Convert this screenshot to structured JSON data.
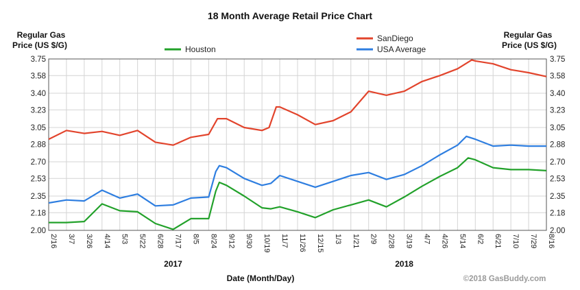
{
  "chart_data": {
    "type": "line",
    "title": "18 Month Average Retail Price Chart",
    "ylabel_left": [
      "Regular Gas",
      "Price (US $/G)"
    ],
    "ylabel_right": [
      "Regular Gas",
      "Price (US $/G)"
    ],
    "xlabel": "Date (Month/Day)",
    "credit": "©2018 GasBuddy.com",
    "ylim": [
      2.0,
      3.75
    ],
    "y_ticks": [
      "3.75",
      "3.58",
      "3.40",
      "3.23",
      "3.05",
      "2.88",
      "2.70",
      "2.53",
      "2.35",
      "2.18",
      "2.00"
    ],
    "x_ticks": [
      "2/16",
      "3/7",
      "3/26",
      "4/14",
      "5/3",
      "5/22",
      "6/28",
      "7/17",
      "8/5",
      "8/24",
      "9/12",
      "9/30",
      "10/19",
      "11/7",
      "11/26",
      "12/15",
      "1/3",
      "1/21",
      "2/9",
      "2/28",
      "3/19",
      "4/7",
      "4/26",
      "5/14",
      "6/2",
      "6/21",
      "7/10",
      "7/29",
      "8/16"
    ],
    "year_labels": [
      {
        "label": "2017",
        "at_tick": 7
      },
      {
        "label": "2018",
        "at_tick": 20
      }
    ],
    "grid": true,
    "legend": [
      {
        "name": "Houston",
        "color": "#22a12a"
      },
      {
        "name": "SanDiego",
        "color": "#e2442c"
      },
      {
        "name": "USA Average",
        "color": "#2e7ee0"
      }
    ],
    "series": [
      {
        "name": "SanDiego",
        "color": "#e2442c",
        "points": [
          [
            0,
            2.93
          ],
          [
            1,
            3.02
          ],
          [
            2,
            2.99
          ],
          [
            3,
            3.01
          ],
          [
            4,
            2.97
          ],
          [
            5,
            3.02
          ],
          [
            6,
            2.9
          ],
          [
            7,
            2.87
          ],
          [
            8,
            2.95
          ],
          [
            9,
            2.98
          ],
          [
            9.5,
            3.14
          ],
          [
            10,
            3.14
          ],
          [
            11,
            3.05
          ],
          [
            12,
            3.02
          ],
          [
            12.4,
            3.05
          ],
          [
            12.8,
            3.26
          ],
          [
            13,
            3.26
          ],
          [
            14,
            3.18
          ],
          [
            15,
            3.08
          ],
          [
            16,
            3.12
          ],
          [
            17,
            3.21
          ],
          [
            18,
            3.42
          ],
          [
            19,
            3.38
          ],
          [
            20,
            3.42
          ],
          [
            21,
            3.52
          ],
          [
            22,
            3.58
          ],
          [
            23,
            3.65
          ],
          [
            23.8,
            3.74
          ],
          [
            24,
            3.73
          ],
          [
            25,
            3.7
          ],
          [
            26,
            3.64
          ],
          [
            27,
            3.61
          ],
          [
            28,
            3.57
          ]
        ]
      },
      {
        "name": "USA Average",
        "color": "#2e7ee0",
        "points": [
          [
            0,
            2.28
          ],
          [
            1,
            2.31
          ],
          [
            2,
            2.3
          ],
          [
            3,
            2.41
          ],
          [
            4,
            2.33
          ],
          [
            5,
            2.37
          ],
          [
            6,
            2.25
          ],
          [
            7,
            2.26
          ],
          [
            8,
            2.33
          ],
          [
            9,
            2.34
          ],
          [
            9.4,
            2.6
          ],
          [
            9.6,
            2.66
          ],
          [
            10,
            2.64
          ],
          [
            11,
            2.53
          ],
          [
            12,
            2.46
          ],
          [
            12.5,
            2.48
          ],
          [
            13,
            2.56
          ],
          [
            14,
            2.5
          ],
          [
            15,
            2.44
          ],
          [
            16,
            2.5
          ],
          [
            17,
            2.56
          ],
          [
            18,
            2.59
          ],
          [
            19,
            2.52
          ],
          [
            20,
            2.57
          ],
          [
            21,
            2.66
          ],
          [
            22,
            2.77
          ],
          [
            23,
            2.87
          ],
          [
            23.5,
            2.96
          ],
          [
            24,
            2.93
          ],
          [
            25,
            2.86
          ],
          [
            26,
            2.87
          ],
          [
            27,
            2.86
          ],
          [
            28,
            2.86
          ]
        ]
      },
      {
        "name": "Houston",
        "color": "#22a12a",
        "points": [
          [
            0,
            2.08
          ],
          [
            1,
            2.08
          ],
          [
            2,
            2.09
          ],
          [
            3,
            2.27
          ],
          [
            4,
            2.2
          ],
          [
            5,
            2.19
          ],
          [
            6,
            2.07
          ],
          [
            7,
            2.01
          ],
          [
            8,
            2.12
          ],
          [
            9,
            2.12
          ],
          [
            9.4,
            2.4
          ],
          [
            9.6,
            2.49
          ],
          [
            10,
            2.46
          ],
          [
            11,
            2.35
          ],
          [
            12,
            2.23
          ],
          [
            12.5,
            2.22
          ],
          [
            13,
            2.24
          ],
          [
            14,
            2.19
          ],
          [
            15,
            2.13
          ],
          [
            16,
            2.21
          ],
          [
            17,
            2.26
          ],
          [
            18,
            2.31
          ],
          [
            19,
            2.24
          ],
          [
            20,
            2.34
          ],
          [
            21,
            2.45
          ],
          [
            22,
            2.55
          ],
          [
            23,
            2.64
          ],
          [
            23.6,
            2.74
          ],
          [
            24,
            2.72
          ],
          [
            25,
            2.64
          ],
          [
            26,
            2.62
          ],
          [
            27,
            2.62
          ],
          [
            28,
            2.61
          ]
        ]
      }
    ]
  }
}
